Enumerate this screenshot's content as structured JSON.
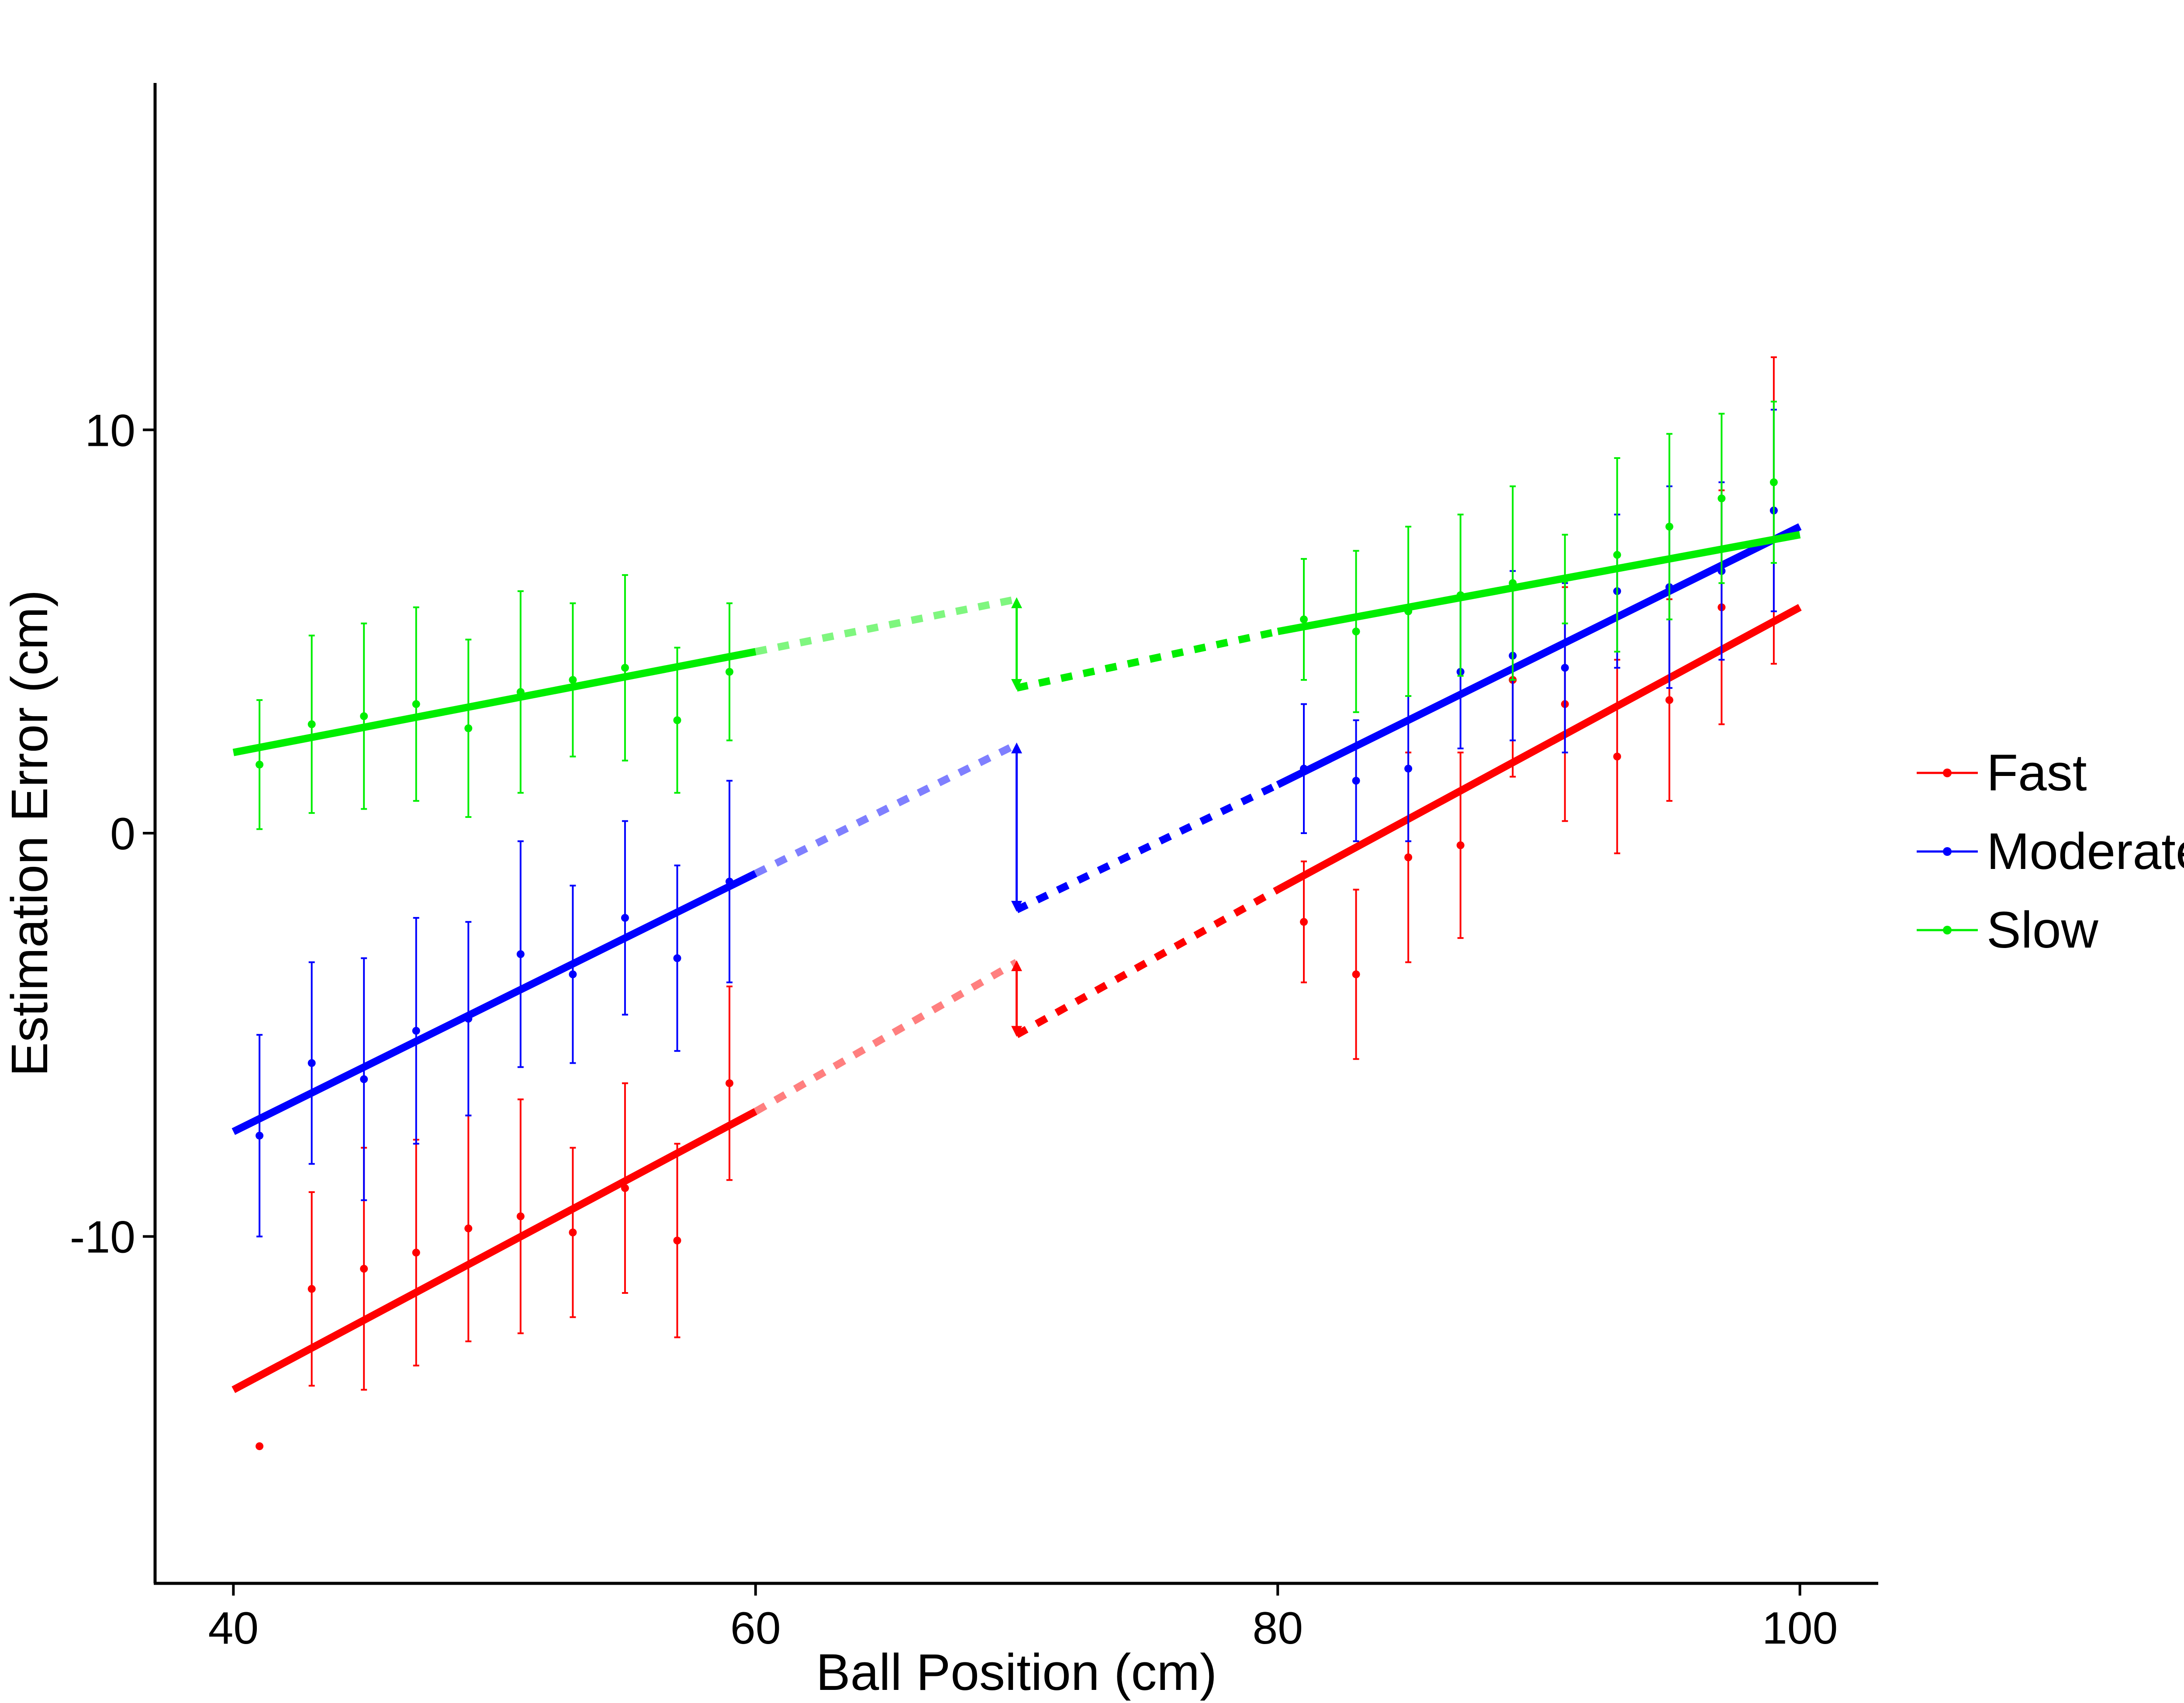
{
  "chart_data": {
    "type": "scatter",
    "title": "",
    "xlabel": "Ball Position (cm)",
    "ylabel": "Estimation Error (cm)",
    "xlim": [
      37,
      103
    ],
    "ylim": [
      -18.6,
      18.6
    ],
    "xticks": [
      40,
      60,
      80,
      100
    ],
    "yticks": [
      -10,
      0,
      10
    ],
    "xtick_labels": [
      "40",
      "60",
      "80",
      "100"
    ],
    "ytick_labels": [
      "-10",
      "0",
      "10"
    ],
    "grid": false,
    "legend_position": "right",
    "series": [
      {
        "name": "Fast",
        "color": "#ff0000",
        "x": [
          41,
          43,
          45,
          47,
          49,
          51,
          53,
          55,
          57,
          59,
          81,
          83,
          85,
          87,
          89,
          91,
          93,
          95,
          97,
          99
        ],
        "y": [
          -15.2,
          -11.3,
          -10.8,
          -10.4,
          -9.8,
          -9.5,
          -9.9,
          -8.8,
          -10.1,
          -6.2,
          -2.2,
          -3.5,
          -0.6,
          -0.3,
          3.8,
          3.2,
          1.9,
          3.3,
          5.6,
          8.0
        ],
        "err": [
          0,
          2.4,
          3.0,
          2.8,
          2.8,
          2.9,
          2.1,
          2.6,
          2.4,
          2.4,
          1.5,
          2.1,
          2.6,
          2.3,
          2.4,
          2.9,
          2.4,
          2.5,
          2.9,
          3.8
        ],
        "fit_segments": [
          {
            "x": [
              40,
              60
            ],
            "y": [
              -13.8,
              -6.9
            ],
            "style": "solid"
          },
          {
            "x": [
              60,
              70
            ],
            "y": [
              -6.9,
              -3.2
            ],
            "style": "dotted-faded"
          },
          {
            "x": [
              70,
              80
            ],
            "y": [
              -5.0,
              -1.4
            ],
            "style": "dotted"
          },
          {
            "x": [
              80,
              100
            ],
            "y": [
              -1.4,
              5.6
            ],
            "style": "solid"
          }
        ],
        "gap_arrow": {
          "x": 70,
          "y": [
            -3.2,
            -5.0
          ]
        }
      },
      {
        "name": "Moderate",
        "color": "#0000ff",
        "x": [
          41,
          43,
          45,
          47,
          49,
          51,
          53,
          55,
          57,
          59,
          81,
          83,
          85,
          87,
          89,
          91,
          93,
          95,
          97,
          99
        ],
        "y": [
          -7.5,
          -5.7,
          -6.1,
          -4.9,
          -4.6,
          -3.0,
          -3.5,
          -2.1,
          -3.1,
          -1.2,
          1.6,
          1.3,
          1.6,
          4.0,
          4.4,
          4.1,
          6.0,
          6.1,
          6.5,
          8.0
        ],
        "err": [
          2.5,
          2.5,
          3.0,
          2.8,
          2.4,
          2.8,
          2.2,
          2.4,
          2.3,
          2.5,
          1.6,
          1.5,
          1.8,
          1.9,
          2.1,
          2.1,
          1.9,
          2.5,
          2.2,
          2.5
        ],
        "fit_segments": [
          {
            "x": [
              40,
              60
            ],
            "y": [
              -7.4,
              -1.0
            ],
            "style": "solid"
          },
          {
            "x": [
              60,
              70
            ],
            "y": [
              -1.0,
              2.2
            ],
            "style": "dotted-faded"
          },
          {
            "x": [
              70,
              80
            ],
            "y": [
              -1.9,
              1.2
            ],
            "style": "dotted"
          },
          {
            "x": [
              80,
              100
            ],
            "y": [
              1.2,
              7.6
            ],
            "style": "solid"
          }
        ],
        "gap_arrow": {
          "x": 70,
          "y": [
            2.2,
            -1.9
          ]
        }
      },
      {
        "name": "Slow",
        "color": "#00ee00",
        "x": [
          41,
          43,
          45,
          47,
          49,
          51,
          53,
          55,
          57,
          59,
          81,
          83,
          85,
          87,
          89,
          91,
          93,
          95,
          97,
          99
        ],
        "y": [
          1.7,
          2.7,
          2.9,
          3.2,
          2.6,
          3.5,
          3.8,
          4.1,
          2.8,
          4.0,
          5.3,
          5.0,
          5.5,
          5.9,
          6.2,
          6.3,
          6.9,
          7.6,
          8.3,
          8.7
        ],
        "err": [
          1.6,
          2.2,
          2.3,
          2.4,
          2.2,
          2.5,
          1.9,
          2.3,
          1.8,
          1.7,
          1.5,
          2.0,
          2.1,
          2.0,
          2.4,
          1.1,
          2.4,
          2.3,
          2.1,
          2.0
        ],
        "fit_segments": [
          {
            "x": [
              40,
              60
            ],
            "y": [
              2.0,
              4.5
            ],
            "style": "solid"
          },
          {
            "x": [
              60,
              70
            ],
            "y": [
              4.5,
              5.8
            ],
            "style": "dotted-faded"
          },
          {
            "x": [
              70,
              80
            ],
            "y": [
              3.6,
              5.0
            ],
            "style": "dotted"
          },
          {
            "x": [
              80,
              100
            ],
            "y": [
              5.0,
              7.4
            ],
            "style": "solid"
          }
        ],
        "gap_arrow": {
          "x": 70,
          "y": [
            5.8,
            3.6
          ]
        }
      }
    ]
  }
}
